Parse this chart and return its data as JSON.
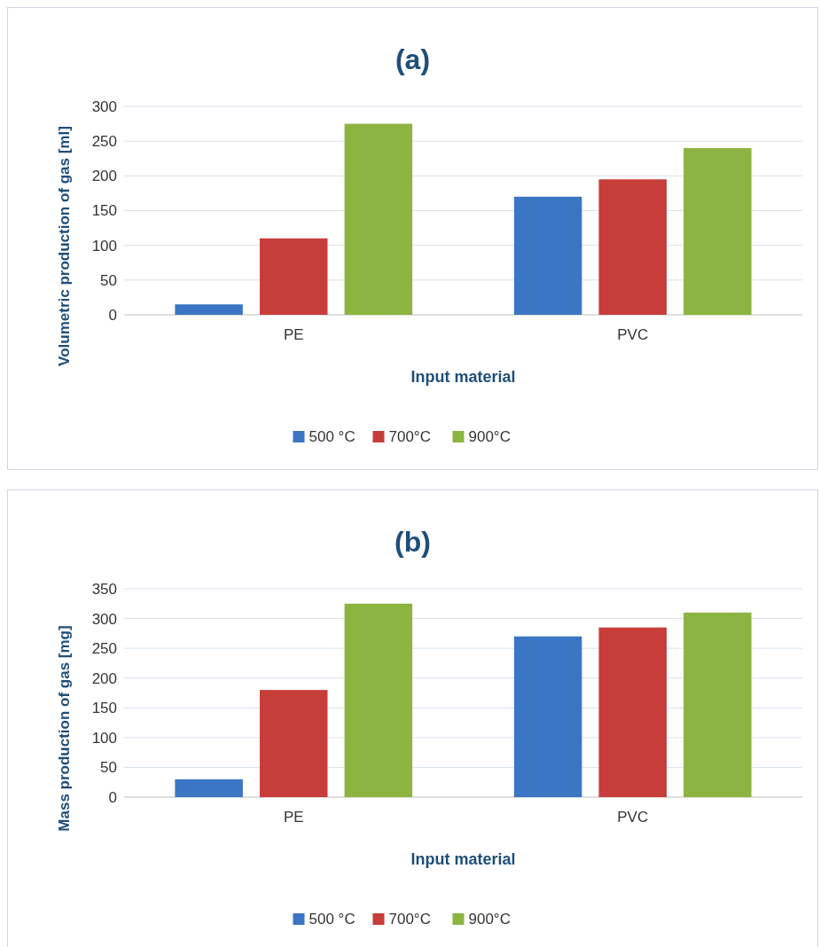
{
  "chart_data": [
    {
      "type": "bar",
      "title": "(a)",
      "xlabel": "Input material",
      "ylabel": "Volumetric production of gas [ml]",
      "categories": [
        "PE",
        "PVC"
      ],
      "series": [
        {
          "name": "500 °C",
          "color": "#3b76c4",
          "values": [
            15,
            170
          ]
        },
        {
          "name": "700°C",
          "color": "#c63d3a",
          "values": [
            110,
            195
          ]
        },
        {
          "name": "900°C",
          "color": "#8cb440",
          "values": [
            275,
            240
          ]
        }
      ],
      "ylim": [
        0,
        300
      ],
      "yticks": [
        0,
        50,
        100,
        150,
        200,
        250,
        300
      ],
      "grid": "y",
      "legend": "bottom"
    },
    {
      "type": "bar",
      "title": "(b)",
      "xlabel": "Input material",
      "ylabel": "Mass production of gas [mg]",
      "categories": [
        "PE",
        "PVC"
      ],
      "series": [
        {
          "name": "500 °C",
          "color": "#3b76c4",
          "values": [
            30,
            270
          ]
        },
        {
          "name": "700°C",
          "color": "#c63d3a",
          "values": [
            180,
            285
          ]
        },
        {
          "name": "900°C",
          "color": "#8cb440",
          "values": [
            325,
            310
          ]
        }
      ],
      "ylim": [
        0,
        350
      ],
      "yticks": [
        0,
        50,
        100,
        150,
        200,
        250,
        300,
        350
      ],
      "grid": "y",
      "legend": "bottom"
    }
  ]
}
